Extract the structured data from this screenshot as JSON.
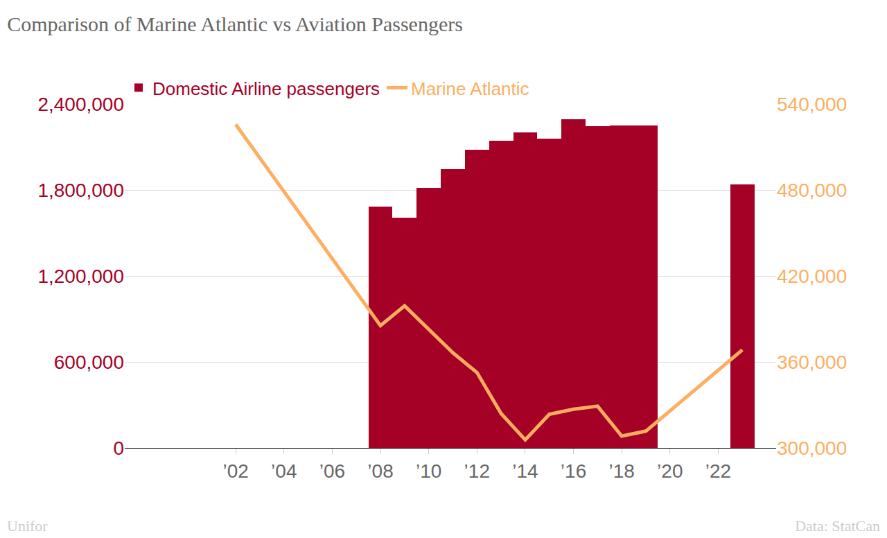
{
  "chart_data": {
    "type": "bar",
    "title": "Comparison of Marine Atlantic vs Aviation Passengers",
    "credit": "Unifor",
    "source": "Data: StatCan",
    "series": [
      {
        "name": "Domestic Airline passengers",
        "type": "bar",
        "color": "#a50026",
        "axis": "y",
        "x": [
          2008,
          2009,
          2010,
          2011,
          2012,
          2013,
          2014,
          2015,
          2016,
          2017,
          2018,
          2019,
          2023
        ],
        "values": [
          1685000,
          1608000,
          1813000,
          1945000,
          2083000,
          2145000,
          2201000,
          2160000,
          2293000,
          2247000,
          2252000,
          2250000,
          1838000
        ]
      },
      {
        "name": "Marine Atlantic",
        "type": "line",
        "color": "#fdae61",
        "axis": "y2",
        "x": [
          2002,
          2008,
          2009,
          2010,
          2011,
          2012,
          2013,
          2014,
          2015,
          2016,
          2017,
          2018,
          2019,
          2023
        ],
        "values": [
          525700,
          385300,
          399100,
          382700,
          366400,
          352600,
          324000,
          305600,
          323500,
          327000,
          329100,
          308200,
          311700,
          368400
        ]
      }
    ],
    "xlim": [
      1997.4,
      2024.4
    ],
    "xticks": [
      {
        "value": 2002,
        "label": "’02"
      },
      {
        "value": 2004,
        "label": "’04"
      },
      {
        "value": 2006,
        "label": "’06"
      },
      {
        "value": 2008,
        "label": "’08"
      },
      {
        "value": 2010,
        "label": "’10"
      },
      {
        "value": 2012,
        "label": "’12"
      },
      {
        "value": 2014,
        "label": "’14"
      },
      {
        "value": 2016,
        "label": "’16"
      },
      {
        "value": 2018,
        "label": "’18"
      },
      {
        "value": 2020,
        "label": "’20"
      },
      {
        "value": 2022,
        "label": "’22"
      }
    ],
    "ylim": [
      0,
      2400000
    ],
    "yticks": [
      0,
      {
        "value": 600000,
        "label": "600,000"
      },
      {
        "value": 1200000,
        "label": "1,200,000"
      },
      {
        "value": 1800000,
        "label": "1,800,000"
      },
      {
        "value": 2400000,
        "label": "2,400,000"
      }
    ],
    "y2lim": [
      300000,
      540000
    ],
    "y2ticks": [
      {
        "value": 300000,
        "label": "300,000"
      },
      {
        "value": 360000,
        "label": "360,000"
      },
      {
        "value": 420000,
        "label": "420,000"
      },
      {
        "value": 480000,
        "label": "480,000"
      },
      {
        "value": 540000,
        "label": "540,000"
      }
    ],
    "grid": true,
    "legend": "top-left"
  }
}
